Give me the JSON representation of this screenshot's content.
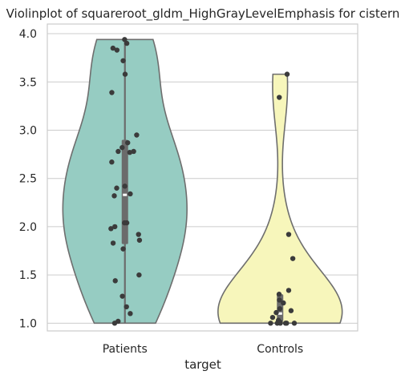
{
  "chart_data": {
    "type": "violin",
    "title": "Violinplot of squareroot_gldm_HighGrayLevelEmphasis for cistern",
    "xlabel": "target",
    "ylabel": "",
    "ylim": [
      0.92,
      4.1
    ],
    "yticks": [
      "1.0",
      "1.5",
      "2.0",
      "2.5",
      "3.0",
      "3.5",
      "4.0"
    ],
    "grid": true,
    "categories": [
      "Patients",
      "Controls"
    ],
    "series": [
      {
        "name": "Patients",
        "color": "#96ccc2",
        "cut_range": [
          1.0,
          3.94
        ],
        "box": {
          "q1": 1.82,
          "median": 2.33,
          "q3": 2.9,
          "whisker_low": 1.0,
          "whisker_high": 3.94
        },
        "points": [
          3.94,
          3.9,
          3.85,
          3.83,
          3.72,
          3.58,
          3.39,
          2.95,
          2.87,
          2.82,
          2.78,
          2.78,
          2.77,
          2.67,
          2.42,
          2.4,
          2.34,
          2.32,
          2.04,
          2.04,
          2.0,
          1.98,
          1.92,
          1.86,
          1.83,
          1.77,
          1.5,
          1.44,
          1.28,
          1.17,
          1.1,
          1.02,
          1.0
        ]
      },
      {
        "name": "Controls",
        "color": "#f7f6bb",
        "cut_range": [
          1.0,
          3.58
        ],
        "box": {
          "q1": 1.02,
          "median": 1.1,
          "q3": 1.3,
          "whisker_low": 1.0,
          "whisker_high": 1.3
        },
        "points": [
          3.58,
          3.34,
          1.92,
          1.67,
          1.34,
          1.3,
          1.24,
          1.21,
          1.15,
          1.13,
          1.11,
          1.06,
          1.03,
          1.01,
          1.0,
          1.0,
          1.0,
          1.0,
          1.0,
          1.0
        ]
      }
    ]
  }
}
